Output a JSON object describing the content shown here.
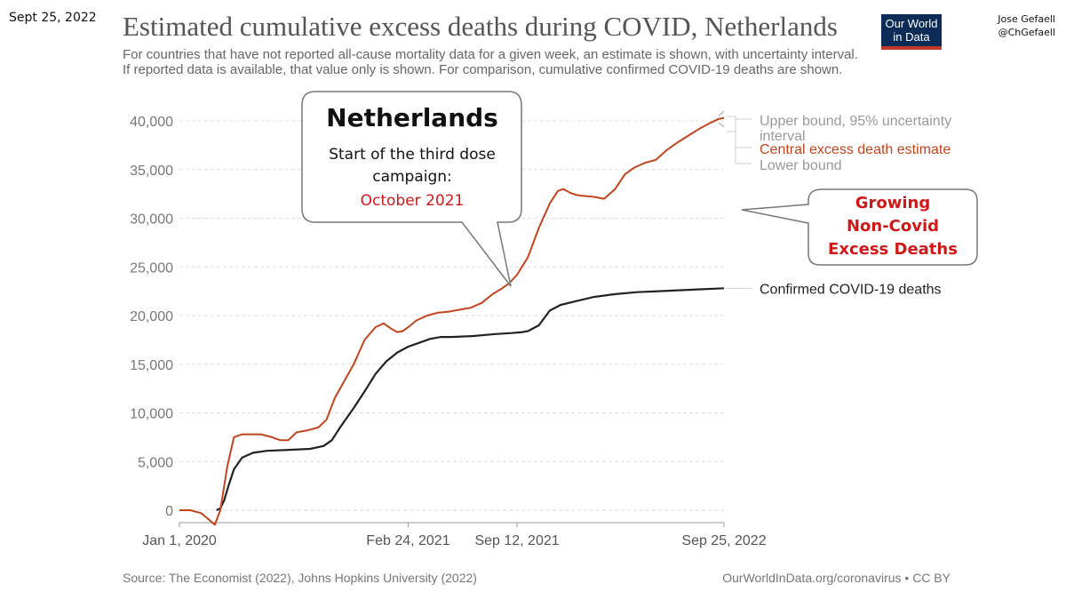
{
  "header": {
    "date": "Sept 25, 2022",
    "title": "Estimated cumulative excess deaths during COVID, Netherlands",
    "subtitle": "For countries that have not reported all-cause mortality data for a given week, an estimate is shown, with uncertainty interval. If reported data is available, that value only is shown. For comparison, cumulative confirmed COVID-19 deaths are shown.",
    "logo_line1": "Our World",
    "logo_line2": "in Data",
    "author_name": "Jose Gefaell",
    "author_handle": "@ChGefaell"
  },
  "footer": {
    "source": "Source: The Economist (2022), Johns Hopkins University (2022)",
    "license": "OurWorldInData.org/coronavirus • CC BY"
  },
  "callouts": {
    "left": {
      "heading": "Netherlands",
      "line1": "Start of the third dose",
      "line2": "campaign:",
      "line3": "October 2021"
    },
    "right": {
      "line1": "Growing",
      "line2": "Non-Covid",
      "line3": "Excess Deaths"
    }
  },
  "colors": {
    "excess": "#c1441d",
    "confirmed": "#222222",
    "bounds": "#b8b8b8",
    "highlight": "#d01818",
    "axis": "#777777"
  },
  "chart_data": {
    "type": "line",
    "title": "Estimated cumulative excess deaths during COVID, Netherlands",
    "xlabel": "",
    "ylabel": "",
    "x_range_days": [
      0,
      1000
    ],
    "ylim": [
      0,
      40000
    ],
    "yticks": [
      0,
      5000,
      10000,
      15000,
      20000,
      25000,
      30000,
      35000,
      40000
    ],
    "ytick_labels": [
      "0",
      "5,000",
      "10,000",
      "15,000",
      "20,000",
      "25,000",
      "30,000",
      "35,000",
      "40,000"
    ],
    "xticks_days": [
      0,
      420,
      620,
      1000
    ],
    "xtick_labels": [
      "Jan 1, 2020",
      "Feb 24, 2021",
      "Sep 12, 2021",
      "Sep 25, 2022"
    ],
    "grid": true,
    "series": [
      {
        "name": "Central excess death estimate",
        "label": "Central excess death estimate",
        "x": [
          0,
          20,
          40,
          55,
          65,
          75,
          88,
          100,
          115,
          130,
          150,
          170,
          185,
          200,
          215,
          235,
          255,
          270,
          285,
          300,
          320,
          340,
          360,
          375,
          390,
          400,
          410,
          420,
          435,
          455,
          475,
          495,
          515,
          535,
          555,
          575,
          590,
          605,
          620,
          640,
          660,
          680,
          695,
          705,
          718,
          728,
          740,
          760,
          780,
          800,
          818,
          835,
          855,
          875,
          895,
          915,
          935,
          955,
          975,
          990,
          1000
        ],
        "y": [
          0,
          0,
          -300,
          -1000,
          -1500,
          0,
          4500,
          7500,
          7800,
          7800,
          7800,
          7500,
          7200,
          7200,
          8000,
          8200,
          8500,
          9300,
          11500,
          13000,
          15000,
          17500,
          18800,
          19200,
          18600,
          18300,
          18400,
          18800,
          19500,
          20000,
          20300,
          20400,
          20600,
          20800,
          21300,
          22200,
          22700,
          23300,
          24200,
          26000,
          29000,
          31500,
          32800,
          33000,
          32600,
          32400,
          32300,
          32200,
          32000,
          33000,
          34500,
          35200,
          35700,
          36000,
          37000,
          37800,
          38500,
          39200,
          39800,
          40200,
          40300
        ]
      },
      {
        "name": "Confirmed COVID-19 deaths",
        "label": "Confirmed COVID-19 deaths",
        "x": [
          68,
          75,
          82,
          90,
          100,
          115,
          135,
          160,
          200,
          240,
          265,
          280,
          295,
          320,
          340,
          360,
          380,
          400,
          420,
          440,
          460,
          480,
          500,
          540,
          580,
          610,
          630,
          640,
          660,
          680,
          700,
          730,
          760,
          800,
          840,
          880,
          920,
          960,
          1000
        ],
        "y": [
          0,
          200,
          1000,
          2500,
          4200,
          5400,
          5900,
          6100,
          6200,
          6300,
          6600,
          7200,
          8500,
          10500,
          12200,
          14000,
          15300,
          16200,
          16800,
          17200,
          17600,
          17800,
          17800,
          17900,
          18100,
          18200,
          18300,
          18400,
          19000,
          20500,
          21100,
          21500,
          21900,
          22200,
          22400,
          22500,
          22600,
          22700,
          22800
        ]
      },
      {
        "name": "Upper bound",
        "label": "Upper bound, 95% uncertainty interval",
        "x": [
          990,
          1000
        ],
        "y": [
          40500,
          41000
        ]
      },
      {
        "name": "Lower bound",
        "label": "Lower bound",
        "x": [
          990,
          1000
        ],
        "y": [
          39800,
          39400
        ]
      }
    ]
  }
}
